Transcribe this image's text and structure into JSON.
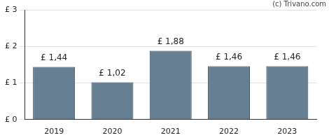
{
  "chart_data": {
    "type": "bar",
    "categories": [
      "2019",
      "2020",
      "2021",
      "2022",
      "2023"
    ],
    "values": [
      1.44,
      1.02,
      1.88,
      1.46,
      1.46
    ],
    "value_labels": [
      "£ 1,44",
      "£ 1,02",
      "£ 1,88",
      "£ 1,46",
      "£ 1,46"
    ],
    "data_labels": true,
    "color": "#667f93",
    "ylim": [
      0,
      3
    ],
    "yticks": [
      {
        "value": 0,
        "label": "£ 0"
      },
      {
        "value": 1,
        "label": "£ 1"
      },
      {
        "value": 2,
        "label": "£ 2"
      },
      {
        "value": 3,
        "label": "£ 3"
      }
    ],
    "grid": true,
    "annotations": [
      "(c) Trivano.com"
    ]
  }
}
